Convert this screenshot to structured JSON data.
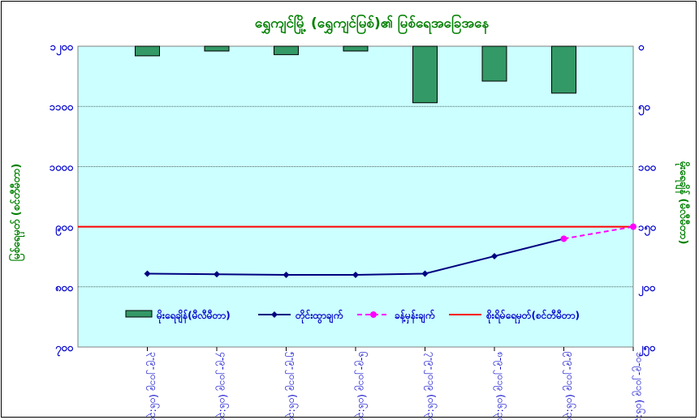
{
  "chart_data": {
    "type": "bar+line",
    "title": "ရွှေကျင်မြို့ (ရွှေကျင်မြစ်)၏ မြစ်ရေအခြေအနေ",
    "ylabel_left": "မြစ်ရေမှတ် (စင်တီမီတာ)",
    "ylabel_right": "မိုးရေချိန် (မီလီမီတာ)",
    "left_axis": {
      "min": 700,
      "max": 1200,
      "ticks": [
        {
          "value": 700,
          "label": "၇၀၀"
        },
        {
          "value": 800,
          "label": "၈၀၀"
        },
        {
          "value": 900,
          "label": "၉၀၀"
        },
        {
          "value": 1000,
          "label": "၁၀၀၀"
        },
        {
          "value": 1100,
          "label": "၁၁၀၀"
        },
        {
          "value": 1200,
          "label": "၁၂၀၀"
        }
      ]
    },
    "right_axis": {
      "min": 0,
      "max": 250,
      "reversed": true,
      "ticks": [
        {
          "value": 0,
          "label": "၀"
        },
        {
          "value": 50,
          "label": "၅၀"
        },
        {
          "value": 100,
          "label": "၁၀၀"
        },
        {
          "value": 150,
          "label": "၁၅၀"
        },
        {
          "value": 200,
          "label": "၂၀၀"
        },
        {
          "value": 250,
          "label": "၂၅၀"
        }
      ]
    },
    "categories": [
      "၃-၉-၂၀၁၉ (ဝ၆:၃၀)",
      "၄-၉-၂၀၁၉ (ဝ၆:၃၀)",
      "၅-၉-၂၀၁၉ (ဝ၆:၃၀)",
      "၆-၉-၂၀၁၉ (ဝ၆:၃၀)",
      "၇-၉-၂၀၁၉ (ဝ၆:၃၀)",
      "၈-၉-၂၀၁၉ (ဝ၆:၃၀)",
      "၉-၉-၂၀၁၉ (ဝ၆:၃၀)",
      "၁၀-၉-၂၀၁၉ (ဝ၆:၃၀)"
    ],
    "series": [
      {
        "name": "မိုးရေချိန်(မီလီမီတာ)",
        "kind": "bar",
        "axis": "right",
        "color": "#339966",
        "values": [
          8,
          4,
          7,
          4,
          47,
          29,
          39,
          null
        ]
      },
      {
        "name": "တိုင်းထွာချက်",
        "kind": "line",
        "axis": "left",
        "color": "#000080",
        "values": [
          822,
          821,
          820,
          820,
          822,
          851,
          880,
          null
        ]
      },
      {
        "name": "ခန့်မှန်းချက်",
        "kind": "dashed-line",
        "axis": "left",
        "color": "#ff00ff",
        "values": [
          null,
          null,
          null,
          null,
          null,
          null,
          880,
          900
        ]
      },
      {
        "name": "စိုးရိမ်ရေမှတ်(စင်တီမီတာ)",
        "kind": "reference-line",
        "axis": "left",
        "color": "#ff0000",
        "value": 900
      }
    ],
    "legend_position": "bottom-inside",
    "colors": {
      "plot_background": "#ccffff",
      "title": "#008000",
      "axis_labels": "#008000",
      "tick_labels": "#0000cc",
      "gridlines": "#000000"
    }
  }
}
